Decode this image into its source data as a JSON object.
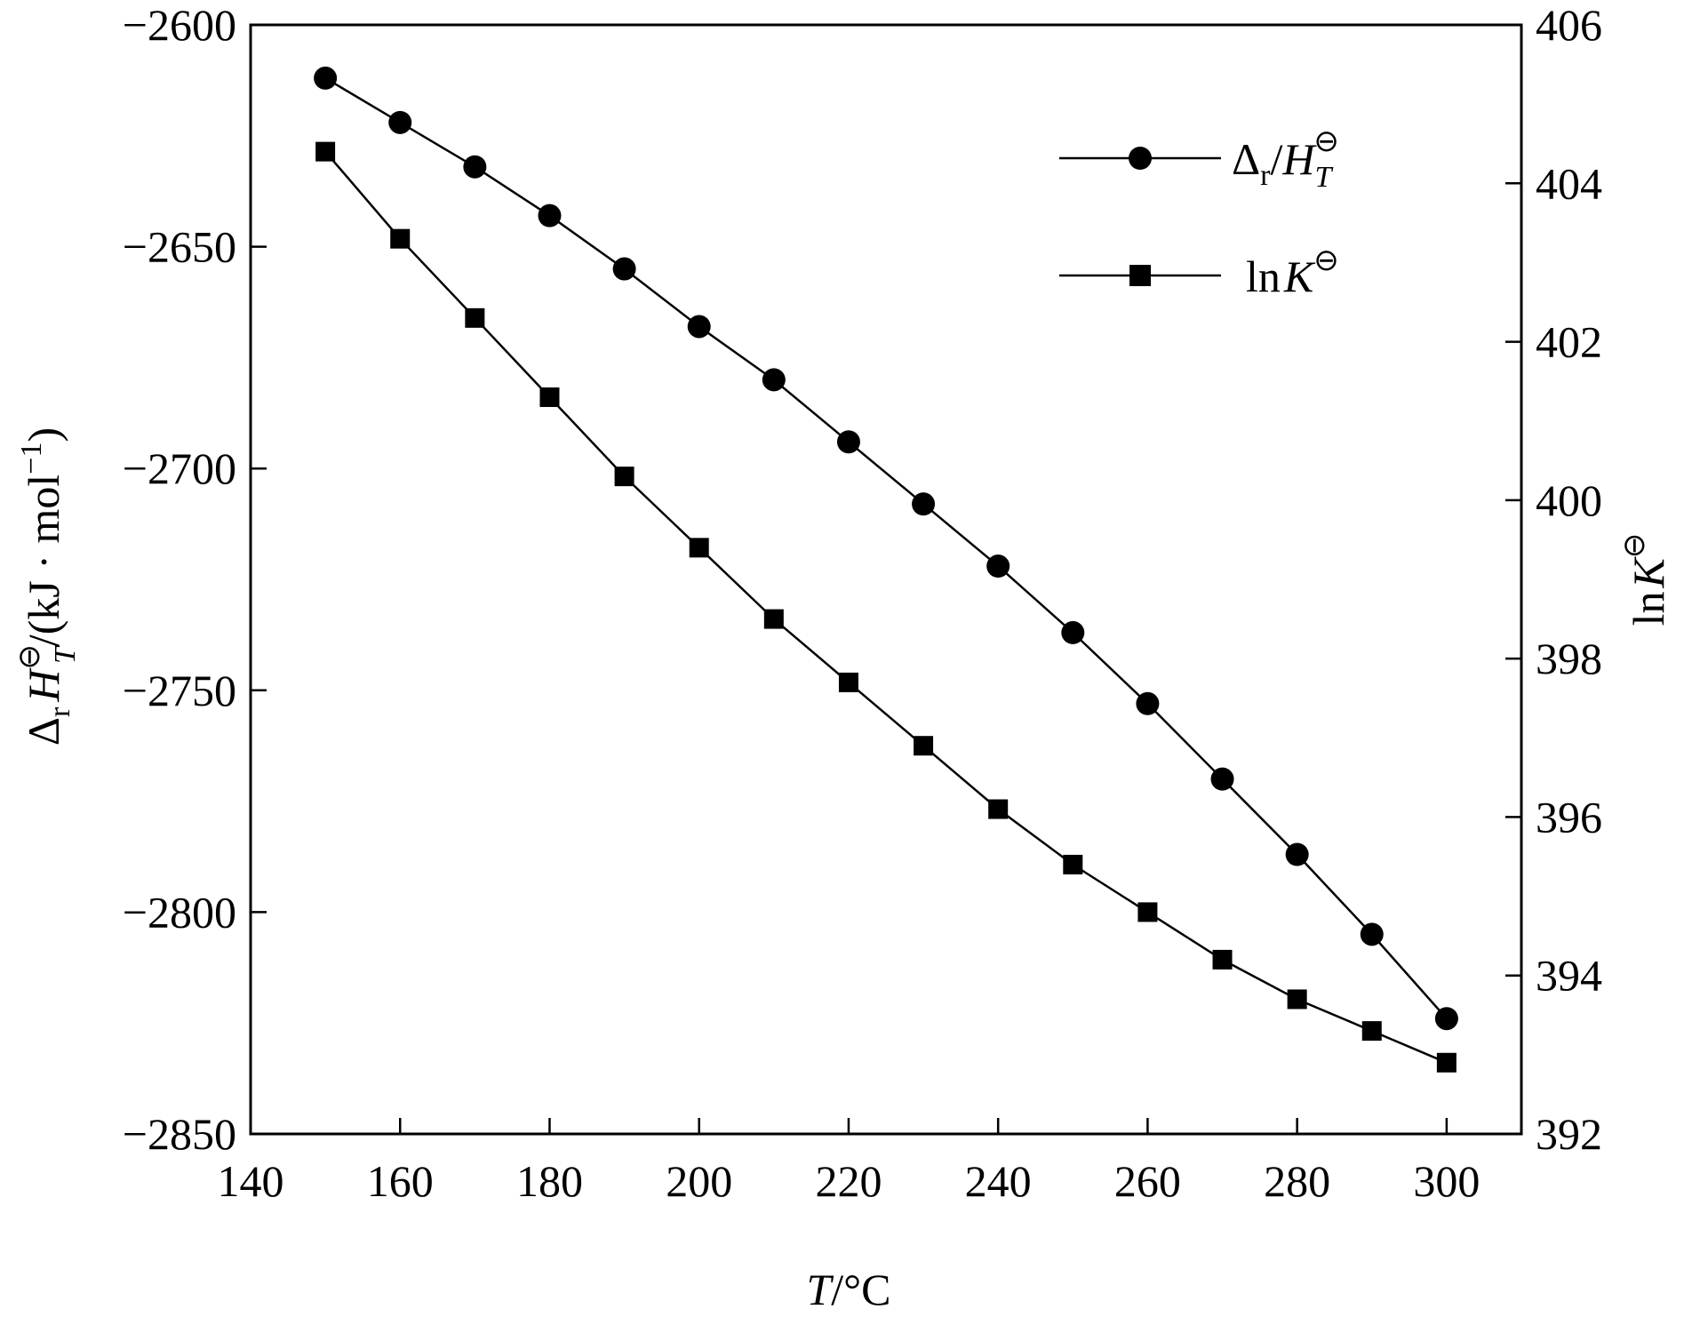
{
  "chart_data": {
    "type": "line",
    "xlabel": {
      "var": "T",
      "unit": "/°C"
    },
    "ylabel_left": {
      "delta": "Δ",
      "sub": "r",
      "var": "H",
      "sup": "⊖",
      "varsub": "T",
      "unit": "/(kJ · mol",
      "unitsup": "−1",
      "close": ")"
    },
    "ylabel_right": {
      "pre": "ln",
      "var": "K",
      "sup": "⊖"
    },
    "xlim": [
      140,
      310
    ],
    "xticks": [
      140,
      160,
      180,
      200,
      220,
      240,
      260,
      280,
      300
    ],
    "xtick_labels": [
      "140",
      "160",
      "180",
      "200",
      "220",
      "240",
      "260",
      "280",
      "300"
    ],
    "ylim_left": [
      -2850,
      -2600
    ],
    "yticks_left": [
      -2600,
      -2650,
      -2700,
      -2750,
      -2800,
      -2850
    ],
    "ytick_labels_left": [
      "−2600",
      "−2650",
      "−2700",
      "−2750",
      "−2800",
      "−2850"
    ],
    "ylim_right": [
      392,
      406
    ],
    "yticks_right": [
      392,
      394,
      396,
      398,
      400,
      402,
      404,
      406
    ],
    "ytick_labels_right": [
      "392",
      "394",
      "396",
      "398",
      "400",
      "402",
      "404",
      "406"
    ],
    "grid": false,
    "legend_position": "top-right",
    "series": [
      {
        "key": "dH",
        "name": {
          "delta": "Δ",
          "sub": "r",
          "slash": "/",
          "var": "H",
          "varsub": "T",
          "sup": "⊖"
        },
        "axis": "left",
        "marker": "circle",
        "x": [
          150,
          160,
          170,
          180,
          190,
          200,
          210,
          220,
          230,
          240,
          250,
          260,
          270,
          280,
          290,
          300
        ],
        "y": [
          -2612,
          -2622,
          -2632,
          -2643,
          -2655,
          -2668,
          -2680,
          -2694,
          -2708,
          -2722,
          -2737,
          -2753,
          -2770,
          -2787,
          -2805,
          -2824
        ]
      },
      {
        "key": "lnK",
        "name": {
          "pre": "ln",
          "var": "K",
          "sup": "⊖"
        },
        "axis": "right",
        "marker": "square",
        "x": [
          150,
          160,
          170,
          180,
          190,
          200,
          210,
          220,
          230,
          240,
          250,
          260,
          270,
          280,
          290,
          300
        ],
        "y": [
          404.4,
          403.3,
          402.3,
          401.3,
          400.3,
          399.4,
          398.5,
          397.7,
          396.9,
          396.1,
          395.4,
          394.8,
          394.2,
          393.7,
          393.3,
          392.9
        ]
      }
    ]
  }
}
